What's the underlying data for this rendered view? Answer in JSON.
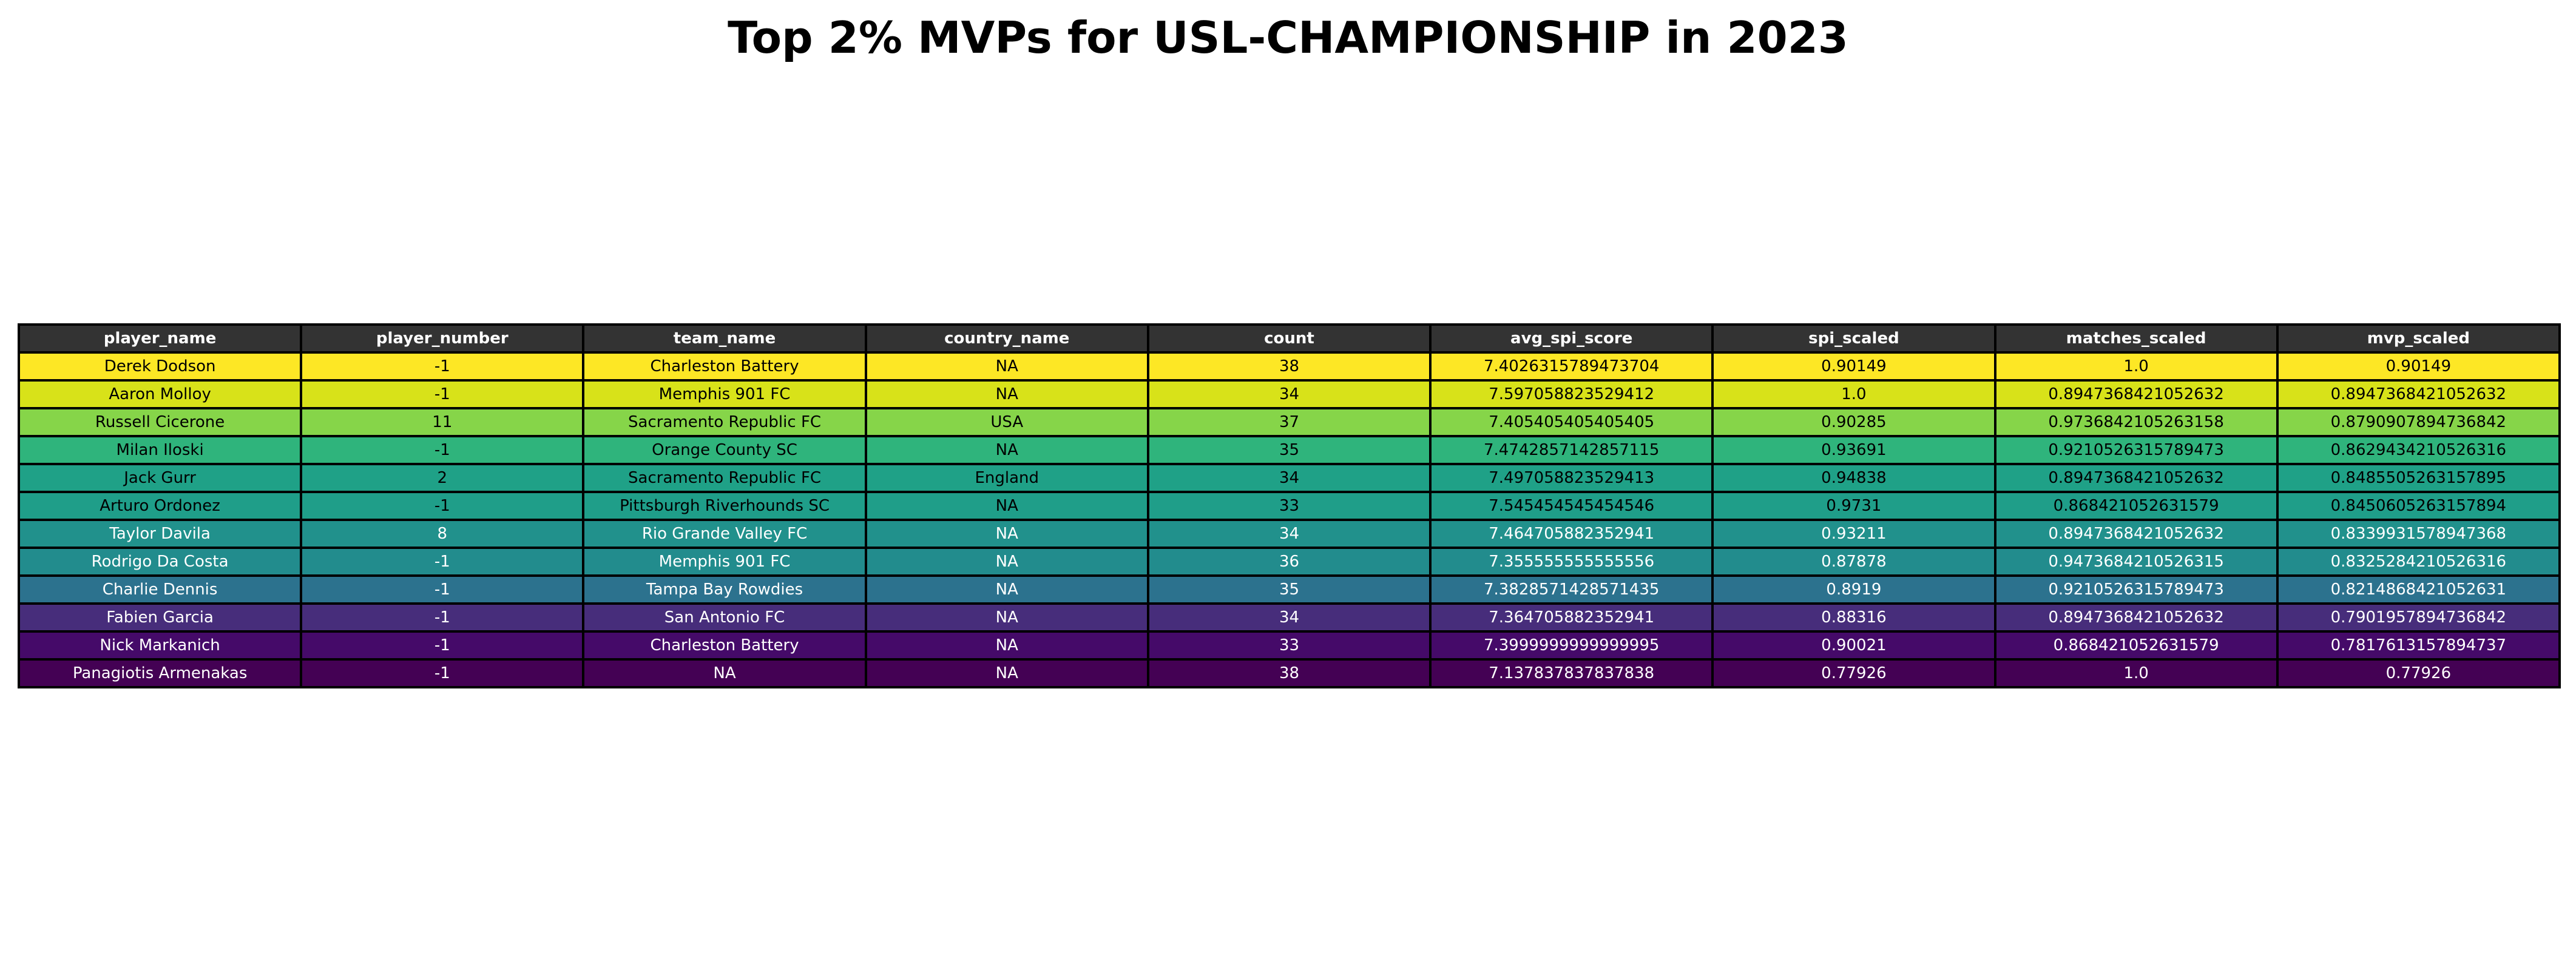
{
  "chart_data": {
    "type": "table",
    "title": "Top 2% MVPs for USL-CHAMPIONSHIP in 2023",
    "header_color": "#333333",
    "columns": [
      "player_name",
      "player_number",
      "team_name",
      "country_name",
      "count",
      "avg_spi_score",
      "spi_scaled",
      "matches_scaled",
      "mvp_scaled"
    ],
    "rows": [
      {
        "cells": [
          "Derek Dodson",
          "-1",
          "Charleston Battery",
          "NA",
          "38",
          "7.4026315789473704",
          "0.90149",
          "1.0",
          "0.90149"
        ],
        "color": "#fde725",
        "text_color": "#000000"
      },
      {
        "cells": [
          "Aaron Molloy",
          "-1",
          "Memphis 901 FC",
          "NA",
          "34",
          "7.597058823529412",
          "1.0",
          "0.8947368421052632",
          "0.8947368421052632"
        ],
        "color": "#d8e219",
        "text_color": "#000000"
      },
      {
        "cells": [
          "Russell Cicerone",
          "11",
          "Sacramento Republic FC",
          "USA",
          "37",
          "7.405405405405405",
          "0.90285",
          "0.9736842105263158",
          "0.8790907894736842"
        ],
        "color": "#86d549",
        "text_color": "#000000"
      },
      {
        "cells": [
          "Milan Iloski",
          "-1",
          "Orange County SC",
          "NA",
          "35",
          "7.4742857142857115",
          "0.93691",
          "0.9210526315789473",
          "0.8629434210526316"
        ],
        "color": "#2fb47c",
        "text_color": "#000000"
      },
      {
        "cells": [
          "Jack Gurr",
          "2",
          "Sacramento Republic FC",
          "England",
          "34",
          "7.497058823529413",
          "0.94838",
          "0.8947368421052632",
          "0.8485505263157895"
        ],
        "color": "#1fa187",
        "text_color": "#000000"
      },
      {
        "cells": [
          "Arturo Ordonez",
          "-1",
          "Pittsburgh Riverhounds SC",
          "NA",
          "33",
          "7.545454545454546",
          "0.9731",
          "0.868421052631579",
          "0.8450605263157894"
        ],
        "color": "#1f9e89",
        "text_color": "#000000"
      },
      {
        "cells": [
          "Taylor Davila",
          "8",
          "Rio Grande Valley FC",
          "NA",
          "34",
          "7.464705882352941",
          "0.93211",
          "0.8947368421052632",
          "0.8339931578947368"
        ],
        "color": "#21918c",
        "text_color": "#ffffff"
      },
      {
        "cells": [
          "Rodrigo Da Costa",
          "-1",
          "Memphis 901 FC",
          "NA",
          "36",
          "7.355555555555556",
          "0.87878",
          "0.9473684210526315",
          "0.8325284210526316"
        ],
        "color": "#228c8d",
        "text_color": "#ffffff"
      },
      {
        "cells": [
          "Charlie Dennis",
          "-1",
          "Tampa Bay Rowdies",
          "NA",
          "35",
          "7.3828571428571435",
          "0.8919",
          "0.9210526315789473",
          "0.8214868421052631"
        ],
        "color": "#2c728e",
        "text_color": "#ffffff"
      },
      {
        "cells": [
          "Fabien Garcia",
          "-1",
          "San Antonio FC",
          "NA",
          "34",
          "7.364705882352941",
          "0.88316",
          "0.8947368421052632",
          "0.7901957894736842"
        ],
        "color": "#472d7b",
        "text_color": "#ffffff"
      },
      {
        "cells": [
          "Nick Markanich",
          "-1",
          "Charleston Battery",
          "NA",
          "33",
          "7.3999999999999995",
          "0.90021",
          "0.868421052631579",
          "0.7817613157894737"
        ],
        "color": "#450a69",
        "text_color": "#ffffff"
      },
      {
        "cells": [
          "Panagiotis Armenakas",
          "-1",
          "NA",
          "NA",
          "38",
          "7.137837837837838",
          "0.77926",
          "1.0",
          "0.77926"
        ],
        "color": "#440154",
        "text_color": "#ffffff"
      }
    ]
  }
}
